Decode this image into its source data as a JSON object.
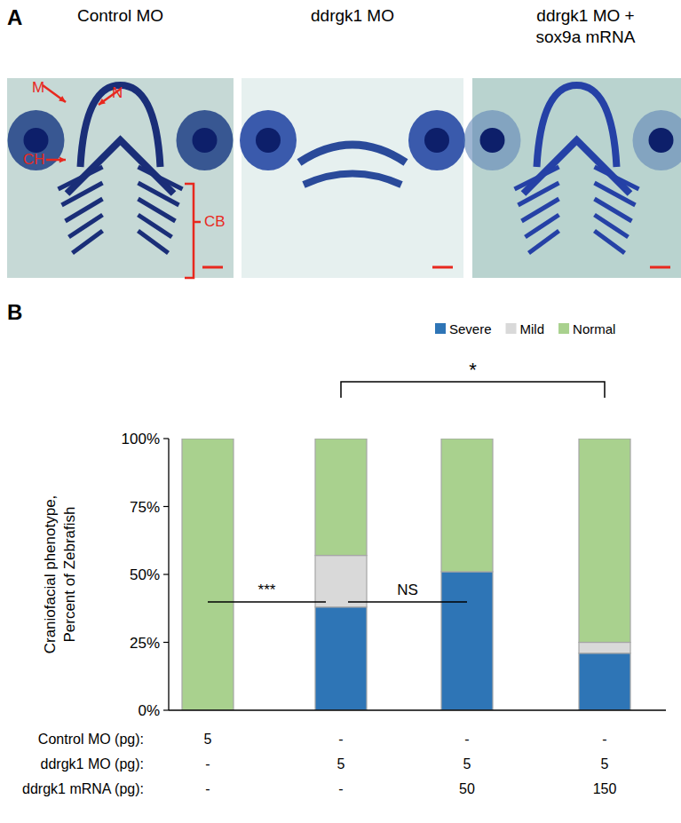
{
  "panel_a": {
    "label": "A",
    "images": [
      {
        "title": "Control MO",
        "markers": [
          {
            "label": "M"
          },
          {
            "label": "N"
          },
          {
            "label": "CH"
          },
          {
            "label": "CB"
          }
        ]
      },
      {
        "title": "ddrgk1 MO",
        "markers": []
      },
      {
        "title": "ddrgk1 MO + sox9a mRNA",
        "markers": []
      }
    ]
  },
  "chart_data": {
    "type": "bar",
    "stacked": true,
    "panel_label": "B",
    "y_label": [
      "Craniofacial phenotype,",
      "Percent of Zebrafish"
    ],
    "categories": [
      null,
      null,
      null,
      null
    ],
    "series": [
      {
        "name": "Severe",
        "color": "#2e75b6",
        "values": [
          0,
          38,
          51,
          21
        ]
      },
      {
        "name": "Mild",
        "color": "#d9d9d9",
        "values": [
          0,
          19,
          0,
          4
        ]
      },
      {
        "name": "Normal",
        "color": "#a9d18e",
        "values": [
          100,
          43,
          49,
          75
        ]
      }
    ],
    "ylim": [
      0,
      100
    ],
    "yticks": [
      {
        "value": 0,
        "label": "0%"
      },
      {
        "value": 25,
        "label": "25%"
      },
      {
        "value": 50,
        "label": "50%"
      },
      {
        "value": 75,
        "label": "75%"
      },
      {
        "value": 100,
        "label": "100%"
      }
    ],
    "legend": "top",
    "grid": false,
    "condition_rows": [
      {
        "label": "Control MO (pg):",
        "values": [
          "5",
          "-",
          "-",
          "-"
        ]
      },
      {
        "label": "ddrgk1 MO (pg):",
        "values": [
          "-",
          "5",
          "5",
          "5"
        ]
      },
      {
        "label": "ddrgk1 mRNA (pg):",
        "values": [
          "-",
          "-",
          "50",
          "150"
        ]
      }
    ],
    "annotations": [
      {
        "text": "***",
        "from": 0,
        "to": 1
      },
      {
        "text": "NS",
        "from": 1,
        "to": 2
      },
      {
        "text": "*",
        "from": 1,
        "to": 3
      }
    ]
  }
}
